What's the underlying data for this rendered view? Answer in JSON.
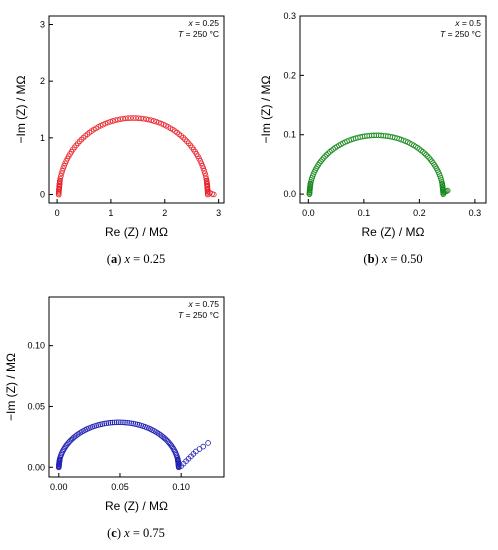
{
  "chart_data": [
    {
      "type": "scatter",
      "caption_letter": "a",
      "caption_value": "0.25",
      "annotation_x_value": "0.25",
      "annotation_T_value": "250 °C",
      "xlabel": "Re (Z) / MΩ",
      "ylabel": "−Im (Z) / MΩ",
      "xlim": [
        -0.15,
        3.1
      ],
      "ylim": [
        -0.15,
        3.15
      ],
      "xticks": [
        "0",
        "1",
        "2",
        "3"
      ],
      "yticks": [
        "0",
        "1",
        "2",
        "3"
      ],
      "color": "#e8212a",
      "marker": "open-circle",
      "arc": {
        "re_start": 0.03,
        "re_end": 2.8,
        "peak": 1.35
      },
      "tail": [
        [
          2.8,
          0.05
        ],
        [
          2.84,
          0.03
        ],
        [
          2.88,
          0.01
        ],
        [
          2.91,
          0.0
        ]
      ]
    },
    {
      "type": "scatter",
      "caption_letter": "b",
      "caption_value": "0.50",
      "annotation_x_value": "0.5",
      "annotation_T_value": "250 °C",
      "xlabel": "Re (Z) / MΩ",
      "ylabel": "−Im (Z) / MΩ",
      "xlim": [
        -0.015,
        0.32
      ],
      "ylim": [
        -0.015,
        0.3
      ],
      "xticks": [
        "0.0",
        "0.1",
        "0.2",
        "0.3"
      ],
      "yticks": [
        "0.0",
        "0.1",
        "0.2",
        "0.3"
      ],
      "color": "#1a8a1f",
      "marker": "open-circle",
      "arc": {
        "re_start": 0.002,
        "re_end": 0.243,
        "peak": 0.099
      },
      "tail": [
        [
          0.245,
          0.003
        ],
        [
          0.247,
          0.004
        ],
        [
          0.249,
          0.005
        ],
        [
          0.251,
          0.006
        ]
      ]
    },
    {
      "type": "scatter",
      "caption_letter": "c",
      "caption_value": "0.75",
      "annotation_x_value": "0.75",
      "annotation_T_value": "250 °C",
      "xlabel": "Re (Z) / MΩ",
      "ylabel": "−Im (Z) / MΩ",
      "xlim": [
        -0.008,
        0.135
      ],
      "ylim": [
        -0.008,
        0.14
      ],
      "xticks": [
        "0.00",
        "0.05",
        "0.10"
      ],
      "yticks": [
        "0.00",
        "0.05",
        "0.10"
      ],
      "color": "#2323b4",
      "marker": "open-circle",
      "arc": {
        "re_start": 0.0,
        "re_end": 0.098,
        "peak": 0.037
      },
      "tail": [
        [
          0.1,
          0.001
        ],
        [
          0.102,
          0.003
        ],
        [
          0.104,
          0.005
        ],
        [
          0.106,
          0.007
        ],
        [
          0.108,
          0.009
        ],
        [
          0.11,
          0.011
        ],
        [
          0.112,
          0.013
        ],
        [
          0.115,
          0.015
        ],
        [
          0.118,
          0.017
        ],
        [
          0.122,
          0.02
        ]
      ]
    }
  ]
}
